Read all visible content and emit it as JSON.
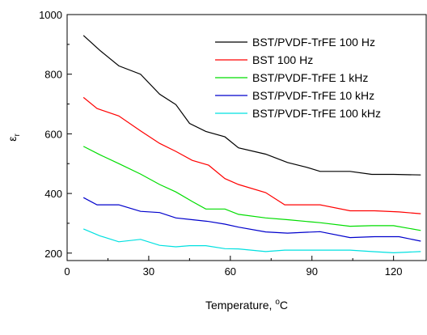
{
  "chart_data": {
    "type": "line",
    "xlabel": "Temperature, °C",
    "ylabel": "εr",
    "xlim": [
      0,
      132
    ],
    "ylim": [
      175,
      1000
    ],
    "x_ticks": [
      0,
      30,
      60,
      90,
      120
    ],
    "y_ticks": [
      200,
      400,
      600,
      800,
      1000
    ],
    "x_tick_labels": [
      "0",
      "30",
      "60",
      "90",
      "120"
    ],
    "y_tick_labels": [
      "200",
      "400",
      "600",
      "800",
      "1000"
    ],
    "grid": false,
    "legend_position": "top-right",
    "series": [
      {
        "name": "BST/PVDF-TrFE 100 Hz",
        "color": "#000000",
        "points": [
          [
            6,
            930
          ],
          [
            12,
            880
          ],
          [
            19,
            828
          ],
          [
            27,
            800
          ],
          [
            34,
            733
          ],
          [
            40,
            698
          ],
          [
            45,
            635
          ],
          [
            51,
            608
          ],
          [
            58,
            590
          ],
          [
            63,
            553
          ],
          [
            73,
            532
          ],
          [
            81,
            504
          ],
          [
            88,
            488
          ],
          [
            93,
            474
          ],
          [
            104,
            474
          ],
          [
            112,
            464
          ],
          [
            120,
            464
          ],
          [
            130,
            462
          ]
        ]
      },
      {
        "name": "BST 100 Hz",
        "color": "#ff0000",
        "points": [
          [
            6,
            722
          ],
          [
            11,
            685
          ],
          [
            19,
            660
          ],
          [
            27,
            610
          ],
          [
            34,
            568
          ],
          [
            40,
            541
          ],
          [
            46,
            511
          ],
          [
            52,
            495
          ],
          [
            58,
            450
          ],
          [
            63,
            430
          ],
          [
            73,
            403
          ],
          [
            80,
            362
          ],
          [
            88,
            362
          ],
          [
            93,
            362
          ],
          [
            104,
            342
          ],
          [
            113,
            342
          ],
          [
            122,
            338
          ],
          [
            130,
            332
          ]
        ]
      },
      {
        "name": "BST/PVDF-TrFE 1 kHz",
        "color": "#00dd00",
        "points": [
          [
            6,
            558
          ],
          [
            12,
            530
          ],
          [
            19,
            500
          ],
          [
            27,
            465
          ],
          [
            34,
            430
          ],
          [
            40,
            405
          ],
          [
            46,
            373
          ],
          [
            51,
            348
          ],
          [
            58,
            348
          ],
          [
            63,
            330
          ],
          [
            73,
            318
          ],
          [
            81,
            312
          ],
          [
            88,
            306
          ],
          [
            93,
            302
          ],
          [
            104,
            290
          ],
          [
            112,
            292
          ],
          [
            120,
            292
          ],
          [
            130,
            276
          ]
        ]
      },
      {
        "name": "BST/PVDF-TrFE 10 kHz",
        "color": "#0000cc",
        "points": [
          [
            6,
            386
          ],
          [
            11,
            362
          ],
          [
            19,
            362
          ],
          [
            27,
            340
          ],
          [
            34,
            336
          ],
          [
            40,
            318
          ],
          [
            46,
            312
          ],
          [
            52,
            306
          ],
          [
            58,
            297
          ],
          [
            63,
            287
          ],
          [
            73,
            271
          ],
          [
            81,
            267
          ],
          [
            88,
            270
          ],
          [
            93,
            272
          ],
          [
            104,
            252
          ],
          [
            113,
            255
          ],
          [
            122,
            255
          ],
          [
            130,
            240
          ]
        ]
      },
      {
        "name": "BST/PVDF-TrFE 100 kHz",
        "color": "#00e0e0",
        "points": [
          [
            6,
            281
          ],
          [
            12,
            258
          ],
          [
            19,
            238
          ],
          [
            27,
            246
          ],
          [
            34,
            226
          ],
          [
            40,
            221
          ],
          [
            45,
            225
          ],
          [
            51,
            225
          ],
          [
            58,
            215
          ],
          [
            63,
            214
          ],
          [
            73,
            205
          ],
          [
            80,
            210
          ],
          [
            88,
            210
          ],
          [
            93,
            210
          ],
          [
            104,
            210
          ],
          [
            112,
            205
          ],
          [
            120,
            201
          ],
          [
            130,
            205
          ]
        ]
      }
    ]
  }
}
